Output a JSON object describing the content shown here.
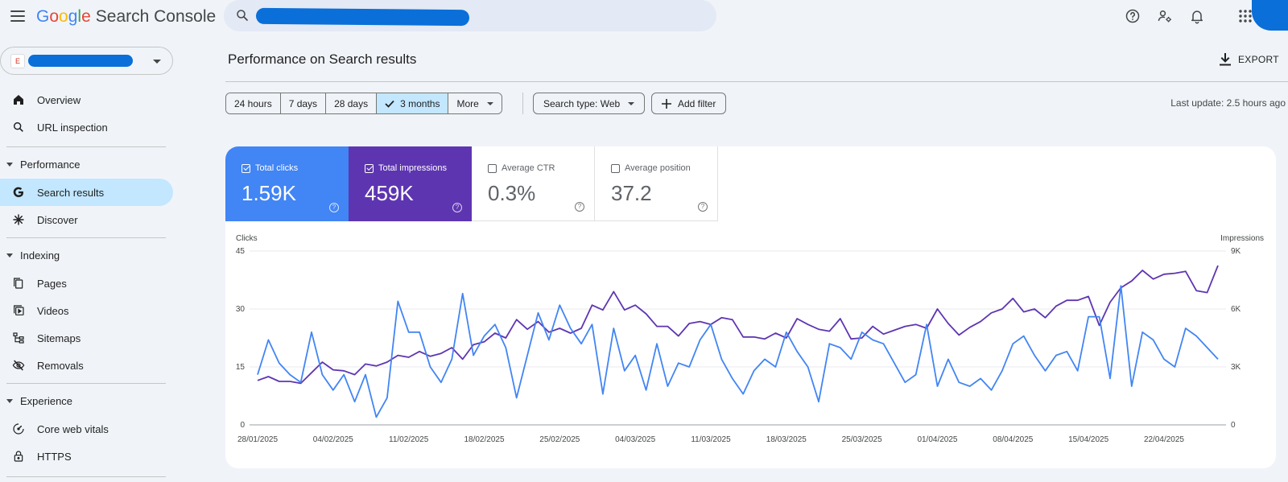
{
  "app": {
    "logo_letters": [
      "G",
      "o",
      "o",
      "g",
      "l",
      "e"
    ],
    "product": "Search Console"
  },
  "sidebar": {
    "property_favicon_letter": "E",
    "items": [
      {
        "label": "Overview",
        "icon": "home-icon"
      },
      {
        "label": "URL inspection",
        "icon": "search-icon"
      }
    ],
    "sections": [
      {
        "label": "Performance",
        "items": [
          {
            "label": "Search results",
            "icon": "google-g-icon",
            "active": true
          },
          {
            "label": "Discover",
            "icon": "asterisk-icon"
          }
        ]
      },
      {
        "label": "Indexing",
        "items": [
          {
            "label": "Pages",
            "icon": "pages-icon"
          },
          {
            "label": "Videos",
            "icon": "video-icon"
          },
          {
            "label": "Sitemaps",
            "icon": "sitemap-icon"
          },
          {
            "label": "Removals",
            "icon": "eye-off-icon"
          }
        ]
      },
      {
        "label": "Experience",
        "items": [
          {
            "label": "Core web vitals",
            "icon": "gauge-icon"
          },
          {
            "label": "HTTPS",
            "icon": "lock-icon"
          }
        ]
      }
    ]
  },
  "main": {
    "title": "Performance on Search results",
    "export_label": "EXPORT",
    "date_ranges": [
      {
        "label": "24 hours",
        "selected": false
      },
      {
        "label": "7 days",
        "selected": false
      },
      {
        "label": "28 days",
        "selected": false
      },
      {
        "label": "3 months",
        "selected": true
      },
      {
        "label": "More",
        "selected": false
      }
    ],
    "search_type": "Search type: Web",
    "add_filter": "Add filter",
    "last_update": "Last update: 2.5 hours ago",
    "metrics": [
      {
        "label": "Total clicks",
        "value": "1.59K",
        "checked": true
      },
      {
        "label": "Total impressions",
        "value": "459K",
        "checked": true
      },
      {
        "label": "Average CTR",
        "value": "0.3%",
        "checked": false
      },
      {
        "label": "Average position",
        "value": "37.2",
        "checked": false
      }
    ],
    "help_glyph": "?"
  },
  "colors": {
    "clicks": "#4285f4",
    "impressions": "#5e35b1",
    "selected": "#c2e7ff"
  },
  "chart_data": {
    "type": "line",
    "ylabel": "Clicks",
    "ylabel_right": "Impressions",
    "yticks_left": [
      "0",
      "15",
      "30",
      "45"
    ],
    "yticks_right": [
      "0",
      "3K",
      "6K",
      "9K"
    ],
    "ylim_left": [
      0,
      45
    ],
    "ylim_right": [
      0,
      9000
    ],
    "x_tick_labels": [
      "28/01/2025",
      "04/02/2025",
      "11/02/2025",
      "18/02/2025",
      "25/02/2025",
      "04/03/2025",
      "11/03/2025",
      "18/03/2025",
      "25/03/2025",
      "01/04/2025",
      "08/04/2025",
      "15/04/2025",
      "22/04/2025"
    ],
    "grid": true,
    "series": [
      {
        "name": "Clicks",
        "axis": "left",
        "values": [
          13,
          22,
          16,
          13,
          11,
          24,
          13,
          9,
          13,
          6,
          13,
          2,
          7,
          32,
          24,
          24,
          15,
          11,
          17,
          34,
          18,
          23,
          26,
          20,
          7,
          18,
          29,
          22,
          31,
          25,
          21,
          26,
          8,
          25,
          14,
          18,
          9,
          21,
          10,
          16,
          15,
          22,
          26,
          17,
          12,
          8,
          14,
          17,
          15,
          24,
          19,
          15,
          6,
          21,
          20,
          17,
          24,
          22,
          21,
          16,
          11,
          13,
          26,
          10,
          17,
          11,
          10,
          12,
          9,
          14,
          21,
          23,
          18,
          14,
          18,
          19,
          14,
          28,
          28,
          12,
          36,
          10,
          24,
          22,
          17,
          15,
          25,
          23,
          20,
          17
        ]
      },
      {
        "name": "Impressions",
        "axis": "right",
        "values": [
          2300,
          2500,
          2250,
          2250,
          2150,
          2700,
          3250,
          2850,
          2800,
          2600,
          3150,
          3050,
          3250,
          3600,
          3500,
          3800,
          3550,
          3700,
          4000,
          3400,
          4150,
          4300,
          4750,
          4500,
          5450,
          4950,
          5350,
          4800,
          5000,
          4750,
          5000,
          6200,
          5950,
          6900,
          5950,
          6200,
          5750,
          5100,
          5100,
          4600,
          5250,
          5350,
          5200,
          5550,
          5450,
          4550,
          4550,
          4450,
          4750,
          4500,
          5500,
          5200,
          4950,
          4850,
          5500,
          4450,
          4500,
          5100,
          4700,
          4900,
          5100,
          5200,
          5000,
          6000,
          5250,
          4650,
          5050,
          5350,
          5800,
          6000,
          6550,
          5850,
          6000,
          5550,
          6150,
          6450,
          6450,
          6650,
          5150,
          6350,
          7100,
          7450,
          8000,
          7550,
          7800,
          7850,
          7950,
          6950,
          6850,
          8250
        ]
      }
    ]
  }
}
